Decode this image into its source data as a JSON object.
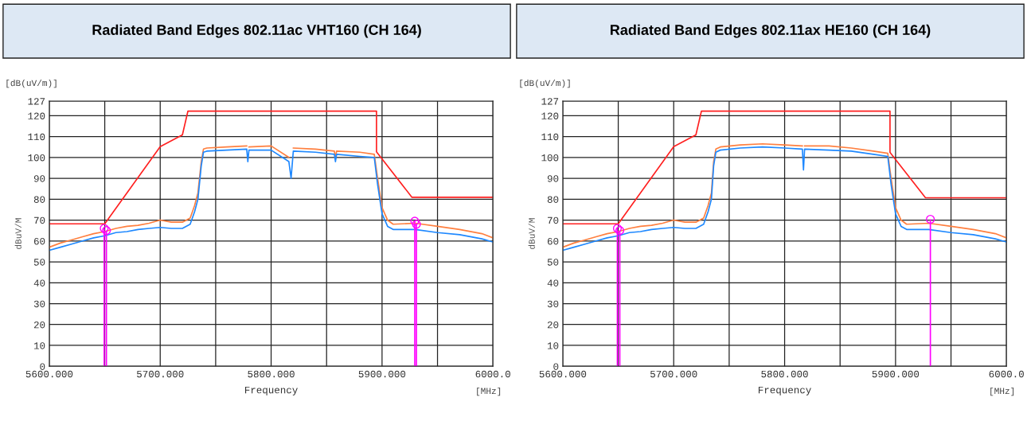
{
  "chart_data": [
    {
      "type": "line",
      "title": "Radiated Band Edges 802.11ac VHT160 (CH 164)",
      "xlabel": "Frequency",
      "ylabel": "dBuV/M",
      "annotations": [
        "[dB(uV/m)]",
        "[MHz]"
      ],
      "xlim": [
        5600,
        6000
      ],
      "ylim": [
        0,
        127
      ],
      "xticks": [
        {
          "value": 5600,
          "label": "5600.000"
        },
        {
          "value": 5650,
          "label": null
        },
        {
          "value": 5700,
          "label": "5700.000"
        },
        {
          "value": 5750,
          "label": null
        },
        {
          "value": 5800,
          "label": "5800.000"
        },
        {
          "value": 5850,
          "label": null
        },
        {
          "value": 5900,
          "label": "5900.000"
        },
        {
          "value": 5950,
          "label": null
        },
        {
          "value": 6000,
          "label": "6000.0"
        }
      ],
      "yticks": [
        0,
        10,
        20,
        30,
        40,
        50,
        60,
        70,
        80,
        90,
        100,
        110,
        120,
        127
      ],
      "grid": true,
      "series": [
        {
          "color": "#ff7f3f",
          "x": [
            5600,
            5610,
            5620,
            5630,
            5640,
            5650,
            5660,
            5670,
            5680,
            5690,
            5700,
            5710,
            5720,
            5727,
            5731,
            5734,
            5737,
            5739,
            5742,
            5760,
            5778,
            5779,
            5780,
            5800,
            5816,
            5818,
            5820,
            5840,
            5857,
            5858,
            5859,
            5880,
            5893,
            5896,
            5900,
            5905,
            5910,
            5930,
            5950,
            5970,
            5990,
            6000
          ],
          "values": [
            57,
            59,
            60.5,
            62,
            63.5,
            64.5,
            66,
            67,
            67.5,
            68.5,
            70,
            69,
            69,
            71,
            77,
            83,
            98,
            104,
            104.5,
            105,
            105.5,
            null,
            105,
            105.5,
            100,
            null,
            104.5,
            104,
            103,
            99.5,
            103,
            102.5,
            101.5,
            90,
            76,
            70,
            68,
            68.5,
            67,
            65.5,
            63.5,
            61.5
          ]
        },
        {
          "color": "#1e88ff",
          "x": [
            5600,
            5610,
            5620,
            5630,
            5640,
            5650,
            5660,
            5670,
            5680,
            5690,
            5700,
            5710,
            5720,
            5727,
            5731,
            5734,
            5737,
            5739,
            5742,
            5760,
            5778,
            5779,
            5780,
            5800,
            5816,
            5818,
            5820,
            5840,
            5857,
            5858,
            5859,
            5880,
            5893,
            5896,
            5900,
            5905,
            5910,
            5930,
            5950,
            5970,
            5990,
            6000
          ],
          "values": [
            55.5,
            57,
            58.5,
            60,
            61.5,
            62.5,
            64,
            64.5,
            65.5,
            66,
            66.5,
            66,
            66,
            68,
            74,
            80,
            96,
            102.5,
            103,
            103.5,
            104,
            98,
            103.5,
            103.5,
            98,
            90,
            103,
            102.5,
            101.5,
            98,
            101.5,
            100.5,
            100,
            87,
            73,
            67,
            65.5,
            65.5,
            64,
            63,
            61,
            59.5
          ]
        },
        {
          "color": "#ff2020",
          "x": [
            5600,
            5650,
            5700,
            5720,
            5725,
            5895,
            5895,
            5927,
            6000
          ],
          "values": [
            68.2,
            68.2,
            105.2,
            110.8,
            122.2,
            122.2,
            102.7,
            80.9,
            80.9
          ]
        },
        {
          "type": "lollipop",
          "color": "#ff00ff",
          "x": [
            5649.5,
            5651.5,
            5929.5,
            5931
          ],
          "values": [
            66,
            65,
            69.5,
            68
          ]
        }
      ]
    },
    {
      "type": "line",
      "title": "Radiated Band Edges 802.11ax HE160 (CH 164)",
      "xlabel": "Frequency",
      "ylabel": "dBuV/M",
      "annotations": [
        "[dB(uV/m)]",
        "[MHz]"
      ],
      "xlim": [
        5600,
        6000
      ],
      "ylim": [
        0,
        127
      ],
      "xticks": [
        {
          "value": 5600,
          "label": "5600.000"
        },
        {
          "value": 5650,
          "label": null
        },
        {
          "value": 5700,
          "label": "5700.000"
        },
        {
          "value": 5750,
          "label": null
        },
        {
          "value": 5800,
          "label": "5800.000"
        },
        {
          "value": 5850,
          "label": null
        },
        {
          "value": 5900,
          "label": "5900.000"
        },
        {
          "value": 5950,
          "label": null
        },
        {
          "value": 6000,
          "label": "6000.0"
        }
      ],
      "yticks": [
        0,
        10,
        20,
        30,
        40,
        50,
        60,
        70,
        80,
        90,
        100,
        110,
        120,
        127
      ],
      "grid": true,
      "series": [
        {
          "color": "#ff7f3f",
          "x": [
            5600,
            5610,
            5620,
            5630,
            5640,
            5650,
            5660,
            5670,
            5680,
            5690,
            5700,
            5710,
            5720,
            5727,
            5731,
            5734,
            5736,
            5738,
            5742,
            5760,
            5780,
            5800,
            5816,
            5817,
            5818,
            5840,
            5860,
            5880,
            5893,
            5896,
            5900,
            5905,
            5910,
            5930,
            5950,
            5970,
            5990,
            6000
          ],
          "values": [
            57,
            59,
            60.5,
            62,
            63.5,
            64.5,
            66,
            67,
            67.5,
            68.5,
            70,
            69,
            69,
            71,
            77,
            83,
            98,
            104,
            105,
            106,
            106.5,
            106,
            105.5,
            null,
            105.5,
            105.5,
            104.5,
            103,
            102,
            90,
            76,
            70,
            68,
            68.5,
            67,
            65.5,
            63.5,
            61.5
          ]
        },
        {
          "color": "#1e88ff",
          "x": [
            5600,
            5610,
            5620,
            5630,
            5640,
            5650,
            5660,
            5670,
            5680,
            5690,
            5700,
            5710,
            5720,
            5727,
            5731,
            5734,
            5736,
            5738,
            5742,
            5760,
            5780,
            5800,
            5816,
            5817,
            5818,
            5840,
            5860,
            5880,
            5893,
            5896,
            5900,
            5905,
            5910,
            5930,
            5950,
            5970,
            5990,
            6000
          ],
          "values": [
            55.5,
            57,
            58.5,
            60,
            61.5,
            62.5,
            64,
            64.5,
            65.5,
            66,
            66.5,
            66,
            66,
            68,
            74,
            80,
            96,
            102.5,
            103.5,
            104.5,
            105,
            104.5,
            104,
            94,
            104,
            103.5,
            103,
            101.5,
            100.5,
            87,
            73,
            67,
            65.5,
            65.5,
            64,
            63,
            61,
            59.5
          ]
        },
        {
          "color": "#ff2020",
          "x": [
            5600,
            5650,
            5700,
            5720,
            5725,
            5895,
            5895,
            5927,
            6000
          ],
          "values": [
            68.2,
            68.2,
            105.2,
            110.8,
            122.2,
            122.2,
            102.4,
            80.7,
            80.7
          ]
        },
        {
          "type": "lollipop",
          "color": "#ff00ff",
          "x": [
            5649.2,
            5651.4,
            5931.4
          ],
          "values": [
            66,
            65,
            70.4
          ]
        }
      ]
    }
  ]
}
